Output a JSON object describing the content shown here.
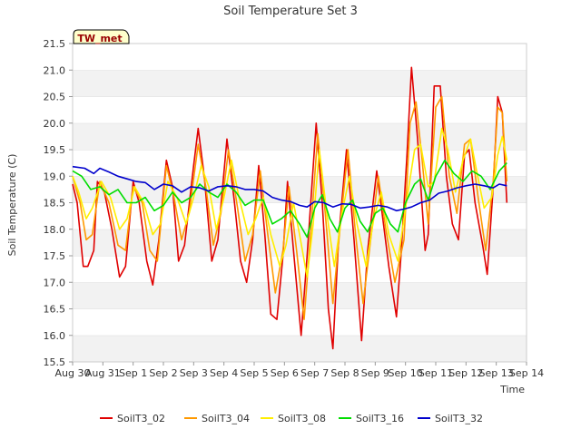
{
  "chart_data": {
    "type": "line",
    "title": "Soil Temperature Set 3",
    "xlabel": "Time",
    "ylabel": "Soil Temperature (C)",
    "annotation": "TW_met",
    "ylim": [
      15.5,
      21.5
    ],
    "xlim": [
      0,
      15
    ],
    "y_ticks": [
      "15.5",
      "16.0",
      "16.5",
      "17.0",
      "17.5",
      "18.0",
      "18.5",
      "19.0",
      "19.5",
      "20.0",
      "20.5",
      "21.0",
      "21.5"
    ],
    "x_ticks": [
      "Aug 30",
      "Aug 31",
      "Sep 1",
      "Sep 2",
      "Sep 3",
      "Sep 4",
      "Sep 5",
      "Sep 6",
      "Sep 7",
      "Sep 8",
      "Sep 9",
      "Sep 10",
      "Sep 11",
      "Sep 12",
      "Sep 13",
      "Sep 14"
    ],
    "grid": "horizontal bands",
    "legend_position": "bottom",
    "colors": {
      "SoilT3_02": "#e00000",
      "SoilT3_04": "#ff9900",
      "SoilT3_08": "#ffee00",
      "SoilT3_16": "#00dd00",
      "SoilT3_32": "#0000cc"
    },
    "series": [
      {
        "name": "SoilT3_02",
        "values": [
          [
            0.0,
            18.85
          ],
          [
            0.15,
            18.5
          ],
          [
            0.35,
            17.3
          ],
          [
            0.5,
            17.3
          ],
          [
            0.7,
            17.6
          ],
          [
            0.82,
            18.9
          ],
          [
            1.05,
            18.7
          ],
          [
            1.3,
            18.0
          ],
          [
            1.55,
            17.1
          ],
          [
            1.75,
            17.3
          ],
          [
            2.0,
            18.9
          ],
          [
            2.2,
            18.5
          ],
          [
            2.45,
            17.4
          ],
          [
            2.65,
            16.95
          ],
          [
            2.85,
            17.8
          ],
          [
            3.1,
            19.3
          ],
          [
            3.3,
            18.8
          ],
          [
            3.5,
            17.4
          ],
          [
            3.7,
            17.7
          ],
          [
            4.0,
            19.2
          ],
          [
            4.15,
            19.9
          ],
          [
            4.35,
            19.0
          ],
          [
            4.6,
            17.4
          ],
          [
            4.8,
            17.8
          ],
          [
            5.1,
            19.7
          ],
          [
            5.35,
            18.5
          ],
          [
            5.55,
            17.4
          ],
          [
            5.75,
            17.0
          ],
          [
            5.95,
            17.8
          ],
          [
            6.15,
            19.2
          ],
          [
            6.35,
            17.9
          ],
          [
            6.55,
            16.4
          ],
          [
            6.75,
            16.3
          ],
          [
            6.95,
            17.5
          ],
          [
            7.1,
            18.9
          ],
          [
            7.3,
            17.6
          ],
          [
            7.55,
            16.0
          ],
          [
            7.75,
            17.5
          ],
          [
            8.05,
            20.0
          ],
          [
            8.25,
            18.5
          ],
          [
            8.45,
            16.5
          ],
          [
            8.6,
            15.75
          ],
          [
            8.8,
            17.9
          ],
          [
            9.05,
            19.5
          ],
          [
            9.3,
            17.8
          ],
          [
            9.55,
            15.9
          ],
          [
            9.75,
            17.6
          ],
          [
            10.05,
            19.1
          ],
          [
            10.25,
            18.2
          ],
          [
            10.45,
            17.3
          ],
          [
            10.7,
            16.35
          ],
          [
            10.85,
            17.5
          ],
          [
            11.05,
            19.4
          ],
          [
            11.2,
            21.05
          ],
          [
            11.4,
            19.7
          ],
          [
            11.65,
            17.6
          ],
          [
            11.75,
            17.9
          ],
          [
            11.95,
            20.7
          ],
          [
            12.15,
            20.7
          ],
          [
            12.35,
            19.0
          ],
          [
            12.55,
            18.1
          ],
          [
            12.75,
            17.8
          ],
          [
            12.95,
            19.4
          ],
          [
            13.1,
            19.5
          ],
          [
            13.3,
            18.5
          ],
          [
            13.55,
            17.7
          ],
          [
            13.7,
            17.15
          ],
          [
            13.9,
            18.8
          ],
          [
            14.05,
            20.5
          ],
          [
            14.2,
            20.2
          ],
          [
            14.35,
            18.5
          ]
        ]
      },
      {
        "name": "SoilT3_04",
        "values": [
          [
            0.0,
            19.0
          ],
          [
            0.25,
            18.5
          ],
          [
            0.45,
            17.8
          ],
          [
            0.65,
            17.9
          ],
          [
            0.9,
            18.9
          ],
          [
            1.2,
            18.5
          ],
          [
            1.5,
            17.7
          ],
          [
            1.75,
            17.6
          ],
          [
            2.0,
            18.8
          ],
          [
            2.3,
            18.5
          ],
          [
            2.55,
            17.6
          ],
          [
            2.8,
            17.4
          ],
          [
            3.1,
            19.2
          ],
          [
            3.35,
            18.6
          ],
          [
            3.6,
            17.8
          ],
          [
            3.85,
            18.3
          ],
          [
            4.15,
            19.6
          ],
          [
            4.4,
            18.8
          ],
          [
            4.65,
            17.7
          ],
          [
            4.9,
            18.3
          ],
          [
            5.15,
            19.5
          ],
          [
            5.45,
            18.4
          ],
          [
            5.7,
            17.4
          ],
          [
            5.95,
            17.9
          ],
          [
            6.2,
            19.1
          ],
          [
            6.45,
            17.9
          ],
          [
            6.7,
            16.8
          ],
          [
            6.95,
            17.6
          ],
          [
            7.15,
            18.8
          ],
          [
            7.4,
            17.6
          ],
          [
            7.65,
            16.3
          ],
          [
            7.85,
            17.8
          ],
          [
            8.1,
            19.8
          ],
          [
            8.35,
            18.3
          ],
          [
            8.6,
            16.6
          ],
          [
            8.85,
            18.1
          ],
          [
            9.1,
            19.5
          ],
          [
            9.35,
            17.9
          ],
          [
            9.6,
            16.6
          ],
          [
            9.85,
            17.8
          ],
          [
            10.1,
            19.0
          ],
          [
            10.35,
            18.0
          ],
          [
            10.65,
            17.0
          ],
          [
            10.95,
            17.8
          ],
          [
            11.15,
            20.0
          ],
          [
            11.35,
            20.4
          ],
          [
            11.55,
            19.3
          ],
          [
            11.75,
            18.1
          ],
          [
            12.0,
            20.3
          ],
          [
            12.2,
            20.5
          ],
          [
            12.45,
            19.0
          ],
          [
            12.7,
            18.3
          ],
          [
            12.95,
            19.6
          ],
          [
            13.15,
            19.7
          ],
          [
            13.4,
            18.6
          ],
          [
            13.65,
            17.6
          ],
          [
            13.9,
            18.9
          ],
          [
            14.05,
            20.3
          ],
          [
            14.2,
            20.2
          ],
          [
            14.35,
            18.9
          ]
        ]
      },
      {
        "name": "SoilT3_08",
        "values": [
          [
            0.0,
            19.0
          ],
          [
            0.2,
            18.7
          ],
          [
            0.45,
            18.2
          ],
          [
            0.65,
            18.4
          ],
          [
            0.95,
            18.9
          ],
          [
            1.25,
            18.6
          ],
          [
            1.55,
            18.0
          ],
          [
            1.8,
            18.2
          ],
          [
            2.05,
            18.8
          ],
          [
            2.35,
            18.5
          ],
          [
            2.65,
            17.9
          ],
          [
            2.9,
            18.1
          ],
          [
            3.15,
            18.9
          ],
          [
            3.45,
            18.6
          ],
          [
            3.75,
            18.1
          ],
          [
            4.0,
            18.6
          ],
          [
            4.25,
            19.2
          ],
          [
            4.5,
            18.8
          ],
          [
            4.75,
            18.0
          ],
          [
            5.0,
            18.6
          ],
          [
            5.25,
            19.3
          ],
          [
            5.5,
            18.6
          ],
          [
            5.8,
            17.9
          ],
          [
            6.05,
            18.2
          ],
          [
            6.3,
            18.6
          ],
          [
            6.55,
            17.9
          ],
          [
            6.85,
            17.3
          ],
          [
            7.05,
            17.7
          ],
          [
            7.3,
            18.5
          ],
          [
            7.5,
            17.9
          ],
          [
            7.75,
            17.1
          ],
          [
            7.95,
            18.1
          ],
          [
            8.15,
            19.5
          ],
          [
            8.4,
            18.3
          ],
          [
            8.65,
            17.3
          ],
          [
            8.9,
            18.3
          ],
          [
            9.15,
            19.0
          ],
          [
            9.4,
            18.1
          ],
          [
            9.7,
            17.3
          ],
          [
            9.95,
            18.2
          ],
          [
            10.2,
            18.7
          ],
          [
            10.45,
            17.9
          ],
          [
            10.75,
            17.4
          ],
          [
            11.0,
            18.4
          ],
          [
            11.3,
            19.5
          ],
          [
            11.5,
            19.6
          ],
          [
            11.75,
            18.8
          ],
          [
            11.95,
            18.9
          ],
          [
            12.2,
            19.9
          ],
          [
            12.4,
            19.5
          ],
          [
            12.65,
            18.7
          ],
          [
            12.9,
            19.3
          ],
          [
            13.15,
            19.7
          ],
          [
            13.35,
            19.1
          ],
          [
            13.6,
            18.4
          ],
          [
            13.85,
            18.6
          ],
          [
            14.05,
            19.4
          ],
          [
            14.2,
            19.75
          ],
          [
            14.35,
            19.3
          ]
        ]
      },
      {
        "name": "SoilT3_16",
        "values": [
          [
            0.0,
            19.1
          ],
          [
            0.3,
            19.0
          ],
          [
            0.6,
            18.75
          ],
          [
            0.9,
            18.8
          ],
          [
            1.2,
            18.65
          ],
          [
            1.5,
            18.75
          ],
          [
            1.8,
            18.5
          ],
          [
            2.1,
            18.5
          ],
          [
            2.4,
            18.6
          ],
          [
            2.7,
            18.35
          ],
          [
            3.0,
            18.45
          ],
          [
            3.3,
            18.7
          ],
          [
            3.6,
            18.5
          ],
          [
            3.9,
            18.6
          ],
          [
            4.2,
            18.85
          ],
          [
            4.5,
            18.7
          ],
          [
            4.8,
            18.6
          ],
          [
            5.1,
            18.85
          ],
          [
            5.4,
            18.7
          ],
          [
            5.7,
            18.45
          ],
          [
            6.0,
            18.55
          ],
          [
            6.3,
            18.55
          ],
          [
            6.6,
            18.1
          ],
          [
            6.9,
            18.2
          ],
          [
            7.2,
            18.35
          ],
          [
            7.5,
            18.1
          ],
          [
            7.75,
            17.85
          ],
          [
            8.0,
            18.4
          ],
          [
            8.25,
            18.65
          ],
          [
            8.5,
            18.2
          ],
          [
            8.75,
            17.95
          ],
          [
            9.0,
            18.4
          ],
          [
            9.25,
            18.55
          ],
          [
            9.5,
            18.15
          ],
          [
            9.75,
            17.95
          ],
          [
            10.0,
            18.3
          ],
          [
            10.25,
            18.4
          ],
          [
            10.5,
            18.1
          ],
          [
            10.75,
            17.95
          ],
          [
            11.0,
            18.5
          ],
          [
            11.3,
            18.85
          ],
          [
            11.5,
            18.95
          ],
          [
            11.75,
            18.55
          ],
          [
            12.0,
            19.0
          ],
          [
            12.3,
            19.3
          ],
          [
            12.6,
            19.05
          ],
          [
            12.9,
            18.9
          ],
          [
            13.2,
            19.1
          ],
          [
            13.5,
            19.0
          ],
          [
            13.8,
            18.75
          ],
          [
            14.1,
            19.1
          ],
          [
            14.35,
            19.25
          ]
        ]
      },
      {
        "name": "SoilT3_32",
        "values": [
          [
            0.0,
            19.18
          ],
          [
            0.4,
            19.15
          ],
          [
            0.7,
            19.05
          ],
          [
            0.9,
            19.15
          ],
          [
            1.2,
            19.08
          ],
          [
            1.5,
            19.0
          ],
          [
            1.8,
            18.95
          ],
          [
            2.1,
            18.9
          ],
          [
            2.4,
            18.88
          ],
          [
            2.7,
            18.75
          ],
          [
            3.0,
            18.85
          ],
          [
            3.3,
            18.82
          ],
          [
            3.6,
            18.7
          ],
          [
            3.9,
            18.8
          ],
          [
            4.2,
            18.78
          ],
          [
            4.5,
            18.72
          ],
          [
            4.8,
            18.8
          ],
          [
            5.1,
            18.82
          ],
          [
            5.4,
            18.8
          ],
          [
            5.7,
            18.75
          ],
          [
            6.0,
            18.75
          ],
          [
            6.3,
            18.72
          ],
          [
            6.6,
            18.6
          ],
          [
            6.9,
            18.55
          ],
          [
            7.2,
            18.52
          ],
          [
            7.5,
            18.45
          ],
          [
            7.75,
            18.42
          ],
          [
            8.0,
            18.52
          ],
          [
            8.3,
            18.5
          ],
          [
            8.6,
            18.42
          ],
          [
            8.9,
            18.48
          ],
          [
            9.2,
            18.47
          ],
          [
            9.5,
            18.4
          ],
          [
            9.8,
            18.42
          ],
          [
            10.1,
            18.45
          ],
          [
            10.4,
            18.42
          ],
          [
            10.7,
            18.35
          ],
          [
            10.95,
            18.38
          ],
          [
            11.2,
            18.42
          ],
          [
            11.5,
            18.5
          ],
          [
            11.8,
            18.55
          ],
          [
            12.1,
            18.68
          ],
          [
            12.4,
            18.72
          ],
          [
            12.7,
            18.78
          ],
          [
            13.0,
            18.82
          ],
          [
            13.3,
            18.85
          ],
          [
            13.6,
            18.82
          ],
          [
            13.9,
            18.78
          ],
          [
            14.1,
            18.85
          ],
          [
            14.35,
            18.82
          ]
        ]
      }
    ]
  }
}
